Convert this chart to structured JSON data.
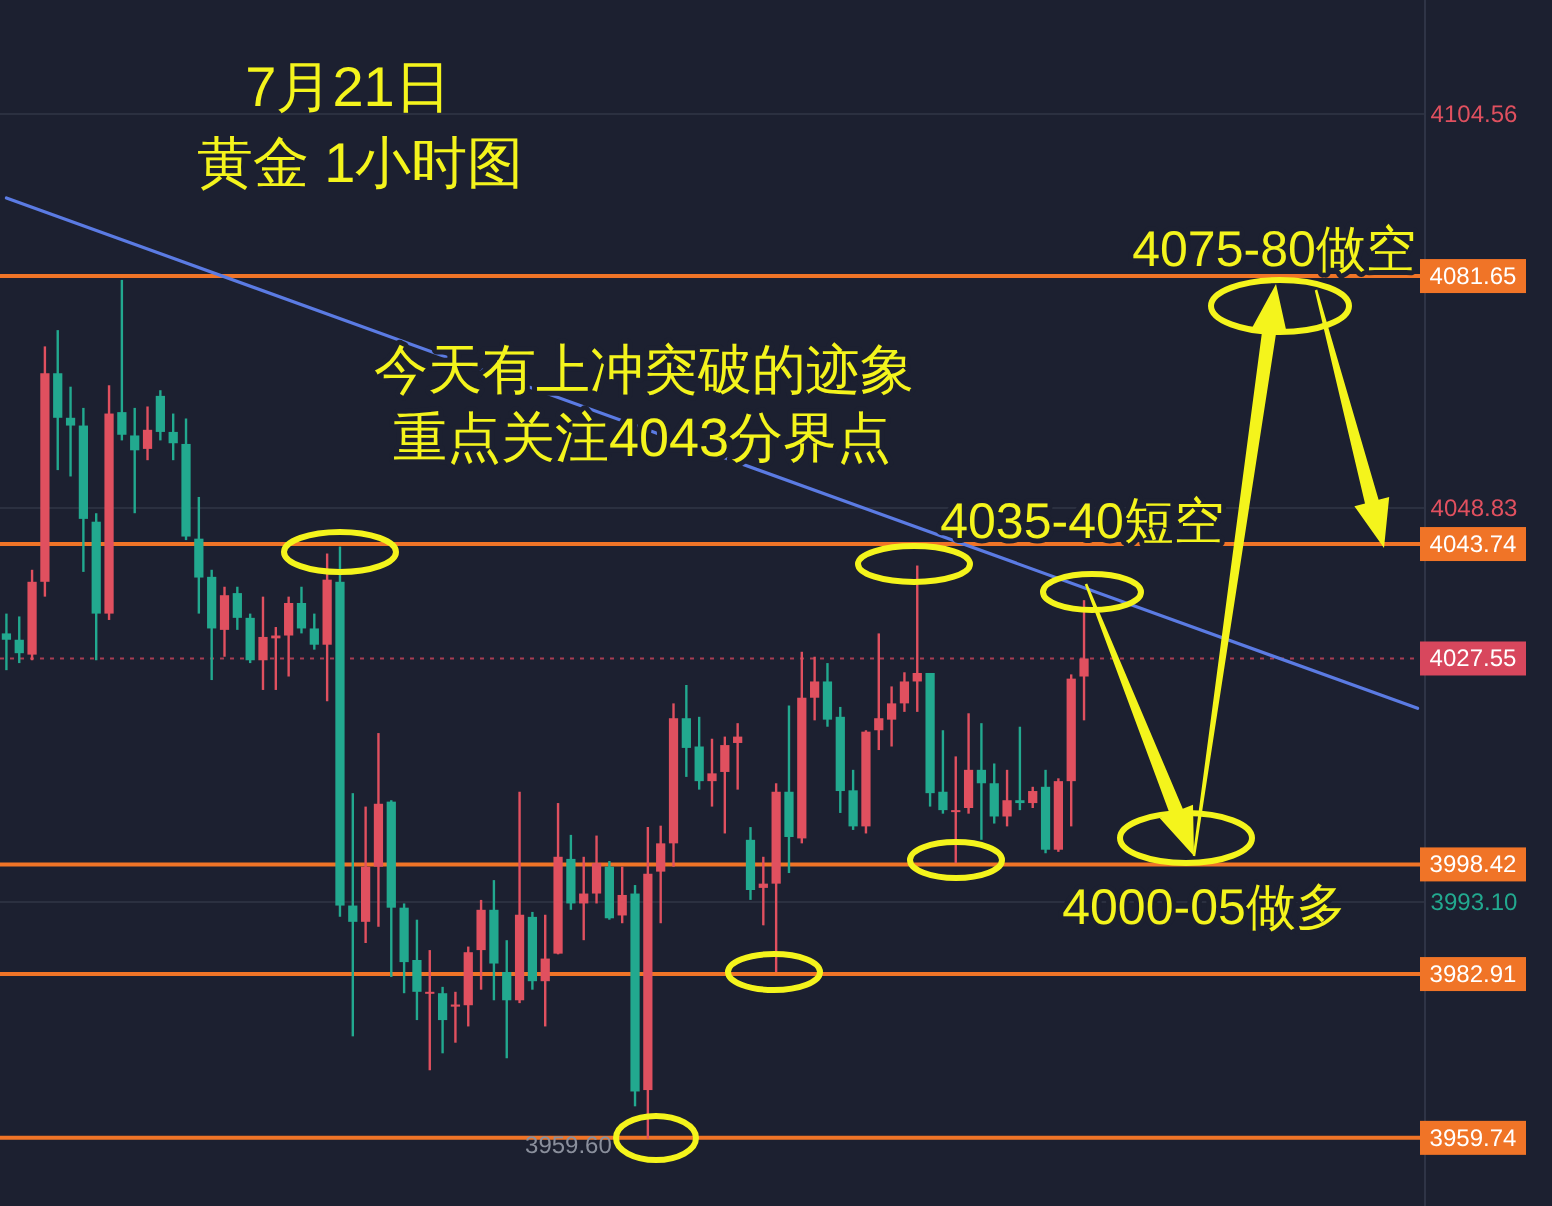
{
  "chart_data": {
    "type": "candlestick",
    "title": "7月21日",
    "subtitle": "黄金 1小时图",
    "categories": [
      null,
      null,
      null,
      null,
      null,
      null,
      null,
      null,
      null,
      null,
      null,
      null,
      null,
      null,
      null,
      null,
      null,
      null,
      null,
      null,
      null,
      null,
      null,
      null,
      null,
      null,
      null,
      null,
      null,
      null,
      null,
      null,
      null,
      null,
      null,
      null,
      null,
      null,
      null,
      null,
      null,
      null,
      null,
      null,
      null,
      null,
      null,
      null,
      null,
      null,
      null,
      null,
      null,
      null,
      null,
      null,
      null,
      null,
      null,
      null,
      null,
      null,
      null,
      null,
      null,
      null,
      null,
      null,
      null,
      null,
      null,
      null,
      null,
      null,
      null,
      null,
      null,
      null,
      null,
      null,
      null,
      null,
      null,
      null,
      null,
      null,
      null,
      null,
      null,
      null,
      null,
      null,
      null,
      null,
      null,
      null,
      null,
      null,
      null,
      null,
      null,
      null,
      null,
      null,
      null,
      null,
      null,
      null,
      null,
      null,
      null
    ],
    "ohlc": [
      [
        4031.1,
        4033.9,
        4025.9,
        4030.2
      ],
      [
        4030.2,
        4033.5,
        4026.9,
        4028.3
      ],
      [
        4028.1,
        4040.1,
        4027.3,
        4038.4
      ],
      [
        4038.4,
        4071.7,
        4036.3,
        4067.9
      ],
      [
        4067.9,
        4074.0,
        4054.2,
        4061.6
      ],
      [
        4061.6,
        4066.0,
        4053.3,
        4060.5
      ],
      [
        4060.5,
        4063.0,
        4039.8,
        4047.3
      ],
      [
        4046.9,
        4048.1,
        4027.3,
        4033.9
      ],
      [
        4033.9,
        4066.2,
        4033.0,
        4062.2
      ],
      [
        4062.4,
        4081.1,
        4058.4,
        4059.2
      ],
      [
        4059.1,
        4063.0,
        4048.1,
        4057.0
      ],
      [
        4057.2,
        4063.2,
        4055.6,
        4059.9
      ],
      [
        4064.7,
        4065.5,
        4058.4,
        4059.6
      ],
      [
        4059.6,
        4062.2,
        4055.6,
        4058.0
      ],
      [
        4057.9,
        4061.5,
        4044.3,
        4044.8
      ],
      [
        4044.5,
        4050.4,
        4033.9,
        4039.0
      ],
      [
        4039.1,
        4040.1,
        4024.5,
        4031.8
      ],
      [
        4031.6,
        4037.7,
        4027.8,
        4036.5
      ],
      [
        4036.8,
        4037.7,
        4031.6,
        4033.3
      ],
      [
        4033.3,
        4033.9,
        4026.9,
        4027.3
      ],
      [
        4027.3,
        4036.3,
        4023.1,
        4030.6
      ],
      [
        4030.4,
        4032.0,
        4023.1,
        4030.8
      ],
      [
        4030.8,
        4036.3,
        4025.0,
        4035.4
      ],
      [
        4035.4,
        4037.7,
        4031.1,
        4031.8
      ],
      [
        4031.8,
        4033.9,
        4028.8,
        4029.5
      ],
      [
        4029.5,
        4042.4,
        4021.5,
        4038.7
      ],
      [
        4038.4,
        4043.4,
        3991.0,
        3992.6
      ],
      [
        3992.6,
        4008.5,
        3974.1,
        3990.3
      ],
      [
        3990.3,
        4006.6,
        3987.3,
        3998.1
      ],
      [
        3998.1,
        4017.0,
        3989.6,
        4007.0
      ],
      [
        4007.3,
        4007.5,
        3982.5,
        3992.3
      ],
      [
        3992.3,
        3992.9,
        3980.2,
        3984.6
      ],
      [
        3984.9,
        3990.6,
        3976.4,
        3980.4
      ],
      [
        3980.2,
        3986.3,
        3969.3,
        3980.4
      ],
      [
        3980.2,
        3981.1,
        3971.7,
        3976.4
      ],
      [
        3978.3,
        3980.4,
        3973.2,
        3978.6
      ],
      [
        3978.5,
        3986.8,
        3975.5,
        3986.0
      ],
      [
        3986.3,
        3993.4,
        3980.7,
        3992.0
      ],
      [
        3992.0,
        3996.2,
        3979.2,
        3984.4
      ],
      [
        3983.2,
        3987.7,
        3971.0,
        3979.2
      ],
      [
        3979.2,
        4008.7,
        3978.8,
        3991.3
      ],
      [
        3991.0,
        3991.7,
        3980.7,
        3981.9
      ],
      [
        3981.9,
        3991.3,
        3975.5,
        3985.1
      ],
      [
        3985.8,
        4007.1,
        3985.7,
        3999.5
      ],
      [
        3999.2,
        4002.6,
        3992.0,
        3992.9
      ],
      [
        3992.9,
        3999.5,
        3987.7,
        3994.3
      ],
      [
        3994.3,
        4002.5,
        3992.9,
        3998.6
      ],
      [
        3998.1,
        3998.9,
        3990.6,
        3990.8
      ],
      [
        3991.2,
        3998.1,
        3990.1,
        3994.1
      ],
      [
        3994.3,
        3995.5,
        3964.2,
        3966.3
      ],
      [
        3966.5,
        4003.7,
        3959.6,
        3997.1
      ],
      [
        3997.4,
        4003.9,
        3990.1,
        4001.4
      ],
      [
        4001.4,
        4021.2,
        3998.1,
        4019.1
      ],
      [
        4019.1,
        4023.8,
        4010.8,
        4014.9
      ],
      [
        4015.1,
        4019.3,
        4009.0,
        4010.2
      ],
      [
        4010.2,
        4016.2,
        4006.6,
        4011.3
      ],
      [
        4011.5,
        4016.5,
        4002.8,
        4015.3
      ],
      [
        4015.6,
        4018.4,
        4009.0,
        4016.5
      ],
      [
        4001.9,
        4003.7,
        3993.4,
        3994.8
      ],
      [
        3995.1,
        3999.5,
        3989.8,
        3995.7
      ],
      [
        3995.7,
        4009.9,
        3983.2,
        4008.7
      ],
      [
        4008.7,
        4020.9,
        3997.2,
        4002.3
      ],
      [
        4002.1,
        4028.5,
        4001.4,
        4022.0
      ],
      [
        4022.0,
        4027.8,
        4018.8,
        4024.3
      ],
      [
        4024.3,
        4026.9,
        4017.9,
        4018.9
      ],
      [
        4019.3,
        4020.7,
        4005.7,
        4008.8
      ],
      [
        4008.9,
        4011.8,
        4003.3,
        4003.8
      ],
      [
        4003.8,
        4017.4,
        4002.8,
        4017.2
      ],
      [
        4017.4,
        4031.1,
        4014.6,
        4019.1
      ],
      [
        4018.9,
        4023.6,
        4015.1,
        4021.2
      ],
      [
        4021.2,
        4025.6,
        4020.0,
        4024.3
      ],
      [
        4024.3,
        4040.7,
        4020.0,
        4025.5
      ],
      [
        4025.5,
        4025.5,
        4006.6,
        4008.5
      ],
      [
        4008.7,
        4017.4,
        4005.6,
        4006.1
      ],
      [
        4005.9,
        4013.7,
        3998.6,
        4006.1
      ],
      [
        4006.4,
        4019.8,
        4005.6,
        4011.8
      ],
      [
        4011.8,
        4018.4,
        4001.9,
        4009.9
      ],
      [
        4009.9,
        4012.7,
        4004.2,
        4005.2
      ],
      [
        4005.2,
        4011.8,
        4003.8,
        4007.5
      ],
      [
        4007.5,
        4017.9,
        4006.1,
        4007.1
      ],
      [
        4007.1,
        4009.4,
        4006.4,
        4008.8
      ],
      [
        4009.4,
        4011.8,
        4000.0,
        4000.5
      ],
      [
        4000.5,
        4010.6,
        4000.2,
        4010.2
      ],
      [
        4010.2,
        4025.3,
        4003.8,
        4024.7
      ],
      [
        4025.0,
        4035.8,
        4018.8,
        4027.55
      ],
      null,
      null,
      null,
      null,
      null,
      null,
      null,
      null,
      null,
      null,
      null,
      null,
      null,
      null,
      null,
      null,
      null,
      null,
      null,
      null,
      null,
      null,
      null,
      null,
      null,
      null
    ],
    "colors": [
      "#22a98f",
      "#22a98f",
      "#e0505f",
      "#e0505f",
      "#22a98f",
      "#22a98f",
      "#22a98f",
      "#22a98f",
      "#e0505f",
      "#22a98f",
      "#22a98f",
      "#e0505f",
      "#22a98f",
      "#22a98f",
      "#22a98f",
      "#22a98f",
      "#22a98f",
      "#e0505f",
      "#22a98f",
      "#22a98f",
      "#e0505f",
      "#e0505f",
      "#e0505f",
      "#22a98f",
      "#22a98f",
      "#e0505f",
      "#22a98f",
      "#22a98f",
      "#e0505f",
      "#e0505f",
      "#22a98f",
      "#22a98f",
      "#22a98f",
      "#e0505f",
      "#22a98f",
      "#e0505f",
      "#e0505f",
      "#e0505f",
      "#22a98f",
      "#22a98f",
      "#e0505f",
      "#22a98f",
      "#e0505f",
      "#e0505f",
      "#22a98f",
      "#e0505f",
      "#e0505f",
      "#22a98f",
      "#e0505f",
      "#22a98f",
      "#e0505f",
      "#e0505f",
      "#e0505f",
      "#22a98f",
      "#22a98f",
      "#e0505f",
      "#e0505f",
      "#e0505f",
      "#22a98f",
      "#e0505f",
      "#e0505f",
      "#22a98f",
      "#e0505f",
      "#e0505f",
      "#22a98f",
      "#22a98f",
      "#22a98f",
      "#e0505f",
      "#e0505f",
      "#e0505f",
      "#e0505f",
      "#e0505f",
      "#22a98f",
      "#22a98f",
      "#e0505f",
      "#e0505f",
      "#22a98f",
      "#22a98f",
      "#e0505f",
      "#22a98f",
      "#e0505f",
      "#22a98f",
      "#e0505f",
      "#e0505f",
      "#e0505f",
      null,
      null,
      null,
      null,
      null,
      null,
      null,
      null,
      null,
      null,
      null,
      null,
      null,
      null,
      null,
      null,
      null,
      null,
      null,
      null,
      null,
      null,
      null,
      null,
      null,
      null
    ],
    "series": [
      {
        "type": "line",
        "color": "#5b7be3",
        "values": [
          4092.7,
          null,
          null,
          null,
          null,
          null,
          null,
          null,
          null,
          null,
          null,
          null,
          null,
          null,
          null,
          null,
          null,
          null,
          null,
          null,
          null,
          null,
          null,
          null,
          null,
          null,
          null,
          null,
          null,
          null,
          null,
          null,
          null,
          null,
          null,
          null,
          null,
          null,
          null,
          null,
          null,
          null,
          null,
          null,
          null,
          null,
          null,
          null,
          null,
          null,
          null,
          null,
          null,
          null,
          null,
          null,
          null,
          null,
          null,
          null,
          null,
          null,
          null,
          null,
          null,
          null,
          null,
          null,
          null,
          null,
          null,
          null,
          null,
          null,
          null,
          null,
          null,
          null,
          null,
          null,
          null,
          null,
          null,
          null,
          null,
          null,
          null,
          null,
          null,
          null,
          null,
          null,
          null,
          null,
          null,
          null,
          null,
          null,
          null,
          null,
          null,
          null,
          null,
          null,
          null,
          null,
          null,
          null,
          null,
          null,
          4020.5
        ]
      }
    ],
    "ylim": [
      3950.1,
      4120.7
    ],
    "yticks": [
      4104.56,
      4048.83,
      {
        "value": 3993.1,
        "label": "3993.10"
      }
    ],
    "tick_labels": "y",
    "grid": "y",
    "ref_lines": [
      {
        "axis": "y",
        "value": 4081.65,
        "label": "4081.65",
        "color": "#f07427"
      },
      {
        "axis": "y",
        "value": 4043.74,
        "label": "4043.74",
        "color": "#f07427"
      },
      {
        "axis": "y",
        "value": 3998.42,
        "label": "3998.42",
        "color": "#f07427"
      },
      {
        "axis": "y",
        "value": 3982.91,
        "label": "3982.91",
        "color": "#f07427"
      },
      {
        "axis": "y",
        "value": 3959.74,
        "label": "3959.74",
        "color": "#f07427"
      },
      {
        "axis": "y",
        "value": 4027.55,
        "label": "4027.55",
        "color": "#d8475d",
        "line_style": "dotted"
      }
    ],
    "annotations": [
      "今天有上冲突破的迹象",
      "重点关注4043分界点",
      "4075-80做空",
      "4035-40短空",
      "4000-05做多",
      {
        "text": "3959.60",
        "y": 3959.6
      }
    ]
  }
}
